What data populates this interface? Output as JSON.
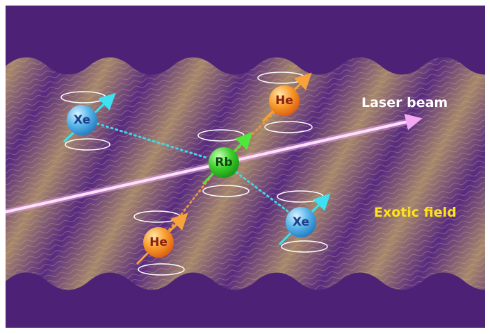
{
  "labels": {
    "laser_beam": "Laser beam",
    "exotic_field": "Exotic field"
  },
  "nodes": [
    {
      "label": "Xe"
    },
    {
      "label": "He"
    },
    {
      "label": "Rb"
    },
    {
      "label": "He"
    },
    {
      "label": "Xe"
    }
  ]
}
